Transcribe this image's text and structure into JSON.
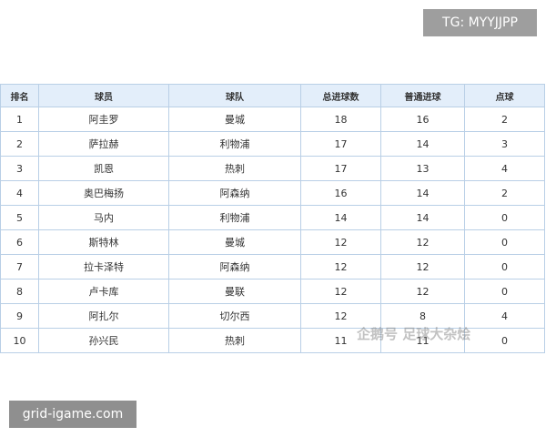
{
  "badge": "TG: MYYJJPP",
  "table": {
    "header": [
      "排名",
      "球员",
      "球队",
      "总进球数",
      "普通进球",
      "点球"
    ],
    "rows": [
      [
        "1",
        "阿圭罗",
        "曼城",
        "18",
        "16",
        "2"
      ],
      [
        "2",
        "萨拉赫",
        "利物浦",
        "17",
        "14",
        "3"
      ],
      [
        "3",
        "凯恩",
        "热刺",
        "17",
        "13",
        "4"
      ],
      [
        "4",
        "奥巴梅扬",
        "阿森纳",
        "16",
        "14",
        "2"
      ],
      [
        "5",
        "马内",
        "利物浦",
        "14",
        "14",
        "0"
      ],
      [
        "6",
        "斯特林",
        "曼城",
        "12",
        "12",
        "0"
      ],
      [
        "7",
        "拉卡泽特",
        "阿森纳",
        "12",
        "12",
        "0"
      ],
      [
        "8",
        "卢卡库",
        "曼联",
        "12",
        "12",
        "0"
      ],
      [
        "9",
        "阿扎尔",
        "切尔西",
        "12",
        "8",
        "4"
      ],
      [
        "10",
        "孙兴民",
        "热刺",
        "11",
        "11",
        "0"
      ]
    ]
  },
  "watermark": "企鹅号 足球大杂烩",
  "site": "grid-igame.com"
}
